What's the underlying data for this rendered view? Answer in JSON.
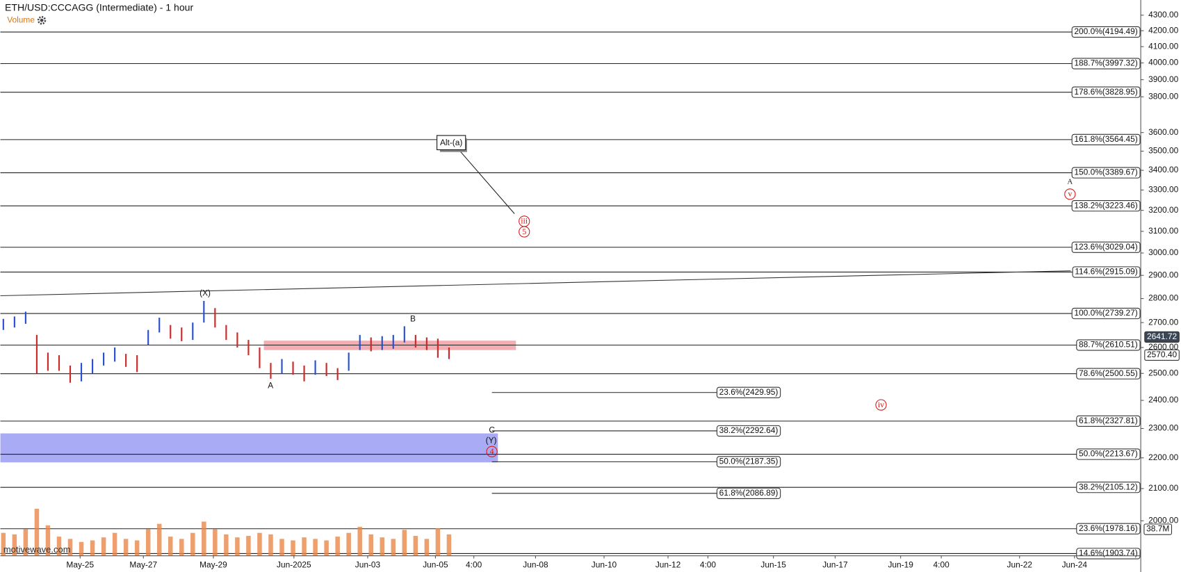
{
  "chart_data": {
    "type": "ohlc",
    "title": "ETH/USD:CCCAGG (Intermediate) - 1 hour",
    "volume_label": "Volume",
    "watermark": "motivewave.com",
    "log_scale": true,
    "ylim": [
      1900,
      4400
    ],
    "yticks": [
      {
        "value": 2000,
        "label": "2000.00"
      },
      {
        "value": 2100,
        "label": "2100.00"
      },
      {
        "value": 2200,
        "label": "2200.00"
      },
      {
        "value": 2300,
        "label": "2300.00"
      },
      {
        "value": 2400,
        "label": "2400.00"
      },
      {
        "value": 2500,
        "label": "2500.00"
      },
      {
        "value": 2600,
        "label": "2600.00"
      },
      {
        "value": 2700,
        "label": "2700.00"
      },
      {
        "value": 2800,
        "label": "2800.00"
      },
      {
        "value": 2900,
        "label": "2900.00"
      },
      {
        "value": 3000,
        "label": "3000.00"
      },
      {
        "value": 3100,
        "label": "3100.00"
      },
      {
        "value": 3200,
        "label": "3200.00"
      },
      {
        "value": 3300,
        "label": "3300.00"
      },
      {
        "value": 3400,
        "label": "3400.00"
      },
      {
        "value": 3500,
        "label": "3500.00"
      },
      {
        "value": 3600,
        "label": "3600.00"
      },
      {
        "value": 3800,
        "label": "3800.00"
      },
      {
        "value": 3900,
        "label": "3900.00"
      },
      {
        "value": 4000,
        "label": "4000.00"
      },
      {
        "value": 4100,
        "label": "4100.00"
      },
      {
        "value": 4200,
        "label": "4200.00"
      },
      {
        "value": 4300,
        "label": "4300.00"
      }
    ],
    "xticks": [
      "May-25",
      "May-27",
      "May-29",
      "Jun-2025",
      "Jun-03",
      "Jun-05",
      "4:00",
      "Jun-08",
      "Jun-10",
      "Jun-12",
      "4:00",
      "Jun-15",
      "Jun-17",
      "Jun-19",
      "4:00",
      "Jun-22",
      "Jun-24"
    ],
    "highs": [
      2715,
      2725,
      2745,
      2650,
      2580,
      2570,
      2530,
      2540,
      2555,
      2580,
      2600,
      2575,
      2570,
      2670,
      2720,
      2690,
      2680,
      2700,
      2790,
      2760,
      2690,
      2660,
      2630,
      2600,
      2540,
      2555,
      2545,
      2530,
      2550,
      2540,
      2520,
      2580,
      2650,
      2640,
      2645,
      2650,
      2685,
      2650,
      2640,
      2635,
      2600
    ],
    "lows": [
      2670,
      2680,
      2695,
      2500,
      2510,
      2510,
      2465,
      2470,
      2500,
      2530,
      2545,
      2525,
      2505,
      2610,
      2660,
      2635,
      2625,
      2630,
      2700,
      2680,
      2630,
      2600,
      2570,
      2520,
      2480,
      2500,
      2495,
      2470,
      2495,
      2490,
      2475,
      2510,
      2590,
      2585,
      2590,
      2595,
      2620,
      2600,
      2590,
      2560,
      2555
    ],
    "up_color": "#2a4fd0",
    "down_color": "#cc2a2a",
    "volume": [
      30,
      28,
      35,
      62,
      40,
      25,
      22,
      18,
      20,
      24,
      30,
      22,
      20,
      35,
      42,
      25,
      22,
      30,
      45,
      35,
      28,
      24,
      26,
      30,
      28,
      22,
      20,
      24,
      22,
      20,
      25,
      30,
      38,
      28,
      24,
      22,
      34,
      26,
      22,
      36,
      28
    ],
    "volume_lim": [
      0,
      80
    ],
    "volume_color": "#e8874a",
    "volume_price_label": {
      "value": 38.7,
      "label": "38.7M"
    },
    "price_labels": [
      2641.72,
      {
        "value": 2570.4,
        "label": "2570.40"
      }
    ],
    "fib_levels": [
      {
        "value": 4194.49,
        "label": "200.0%(4194.49)"
      },
      {
        "value": 3997.32,
        "label": "188.7%(3997.32)"
      },
      {
        "value": 3828.95,
        "label": "178.6%(3828.95)"
      },
      {
        "value": 3564.45,
        "label": "161.8%(3564.45)"
      },
      {
        "value": 3389.67,
        "label": "150.0%(3389.67)"
      },
      {
        "value": 3223.46,
        "label": "138.2%(3223.46)"
      },
      {
        "value": 3029.04,
        "label": "123.6%(3029.04)"
      },
      {
        "value": 2915.09,
        "label": "114.6%(2915.09)"
      },
      {
        "value": 2739.27,
        "label": "100.0%(2739.27)"
      },
      {
        "value": 2610.51,
        "label": "88.7%(2610.51)"
      },
      {
        "value": 2500.55,
        "label": "78.6%(2500.55)"
      },
      {
        "value": 2327.81,
        "label": "61.8%(2327.81)"
      },
      {
        "value": 2213.67,
        "label": "50.0%(2213.67)"
      },
      {
        "value": 2105.12,
        "label": "38.2%(2105.12)"
      },
      {
        "value": 1978.16,
        "label": "23.6%(1978.16)"
      },
      {
        "value": 1903.74,
        "label": "14.6%(1903.74)"
      }
    ],
    "inner_fib_levels": [
      {
        "value": 2429.95,
        "label": "23.6%(2429.95)"
      },
      {
        "value": 2292.64,
        "label": "38.2%(2292.64)"
      },
      {
        "value": 2187.35,
        "label": "50.0%(2187.35)"
      },
      {
        "value": 2086.89,
        "label": "61.8%(2086.89)"
      }
    ],
    "zones": [
      {
        "range": [
          2590,
          2627
        ],
        "color": "#f0a0a4"
      },
      {
        "range": [
          2185,
          2283
        ],
        "color": "#9a9cf2"
      }
    ],
    "trendline": [
      2812,
      2920
    ],
    "annotations": [
      "(X)",
      "B",
      "A",
      "C",
      "(Y)",
      "4",
      "Alt-(a)",
      "iii",
      "5",
      "A",
      "v",
      "iv"
    ]
  }
}
